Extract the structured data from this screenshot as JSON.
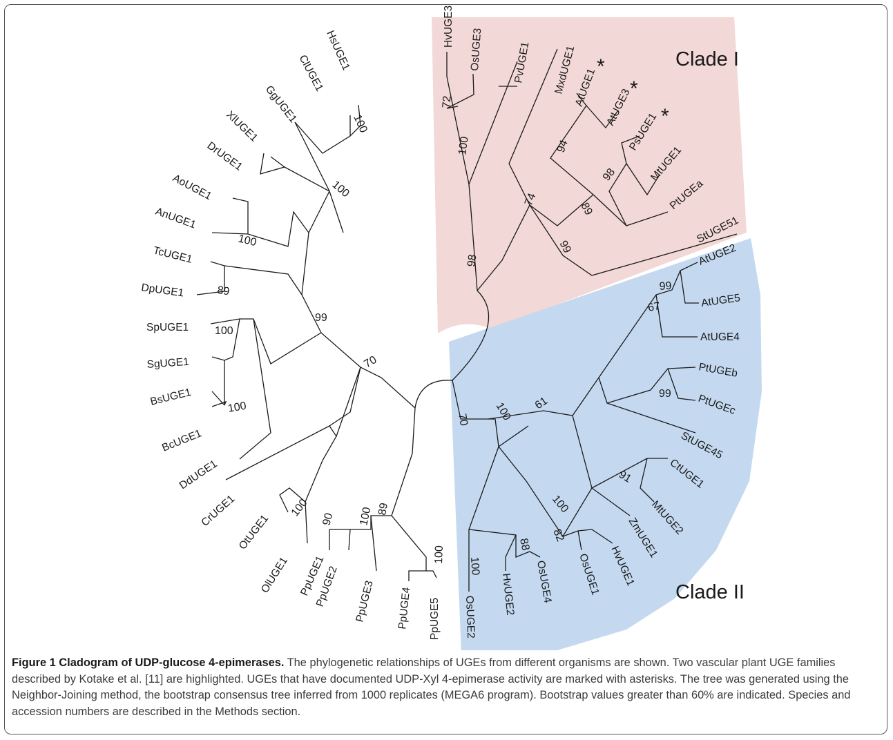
{
  "figure": {
    "clade_labels": {
      "clade1": "Clade I",
      "clade2": "Clade II"
    },
    "highlight_colors": {
      "clade1": "#f2d8d6",
      "clade2": "#c4d9f0"
    },
    "asterisk": "*",
    "leaves": [
      "HvUGE3",
      "OsUGE3",
      "PvUGE1",
      "MxdUGE1",
      "AtUGE1",
      "AtUGE3",
      "PsUGE1",
      "MtUGE1",
      "PtUGEa",
      "StUGE51",
      "AtUGE2",
      "AtUGE5",
      "AtUGE4",
      "PtUGEb",
      "PtUGEc",
      "StUGE45",
      "CtUGE1",
      "MtUGE2",
      "ZmUGE1",
      "HvUGE1",
      "OsUGE1",
      "OsUGE4",
      "HvUGE2",
      "OsUGE2",
      "PpUGE5",
      "PpUGE4",
      "PpUGE3",
      "PpUGE2",
      "PpUGE1",
      "OlUGE1",
      "OtUGE1",
      "CrUGE1",
      "DdUGE1",
      "BcUGE1",
      "BsUGE1",
      "SgUGE1",
      "SpUGE1",
      "DpUGE1",
      "TcUGE1",
      "AnUGE1",
      "AoUGE1",
      "DrUGE1",
      "XlUGE1",
      "GgUGE1",
      "ClUGE1",
      "HsUGE1"
    ],
    "bootstrap": [
      "72",
      "100",
      "74",
      "89",
      "94",
      "98",
      "99",
      "98",
      "99",
      "67",
      "99",
      "61",
      "91",
      "100",
      "82",
      "88",
      "100",
      "70",
      "100",
      "89",
      "90",
      "100",
      "100",
      "100",
      "100",
      "100",
      "89",
      "99",
      "70",
      "100"
    ]
  },
  "caption": {
    "title": "Figure 1 Cladogram of UDP-glucose 4-epimerases.",
    "body": " The phylogenetic relationships of UGEs from different organisms are shown. Two vascular plant UGE families described by Kotake et al. [11] are highlighted. UGEs that have documented UDP-Xyl 4-epimerase activity are marked with asterisks. The tree was generated using the Neighbor-Joining method, the bootstrap consensus tree inferred from 1000 replicates (MEGA6 program). Bootstrap values greater than 60% are indicated. Species and accession numbers are described in the Methods section."
  }
}
